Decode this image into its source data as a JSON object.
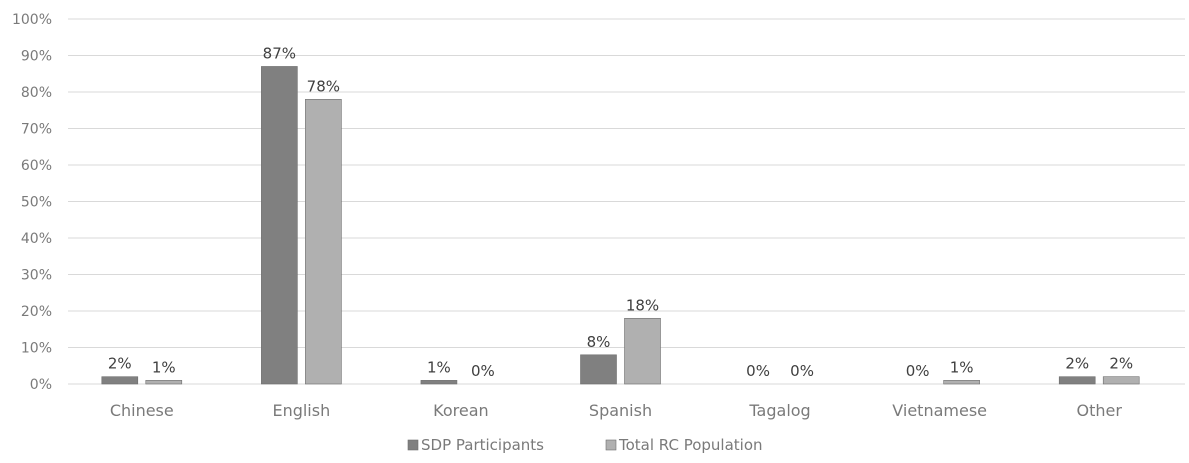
{
  "chart_data": {
    "type": "bar",
    "title": "",
    "xlabel": "",
    "ylabel": "",
    "ylim": [
      0,
      100
    ],
    "yticks": [
      "0%",
      "10%",
      "20%",
      "30%",
      "40%",
      "50%",
      "60%",
      "70%",
      "80%",
      "90%",
      "100%"
    ],
    "categories": [
      "Chinese",
      "English",
      "Korean",
      "Spanish",
      "Tagalog",
      "Vietnamese",
      "Other"
    ],
    "series": [
      {
        "name": "SDP Participants",
        "color": "#808080",
        "values": [
          2,
          87,
          1,
          8,
          0,
          0,
          2
        ],
        "labels": [
          "2%",
          "87%",
          "1%",
          "8%",
          "0%",
          "0%",
          "2%"
        ]
      },
      {
        "name": "Total RC Population",
        "color": "#b0b0b0",
        "values": [
          1,
          78,
          0,
          18,
          0,
          1,
          2
        ],
        "labels": [
          "1%",
          "78%",
          "0%",
          "18%",
          "0%",
          "1%",
          "2%"
        ]
      }
    ],
    "grid": true,
    "legend": "bottom-center"
  }
}
